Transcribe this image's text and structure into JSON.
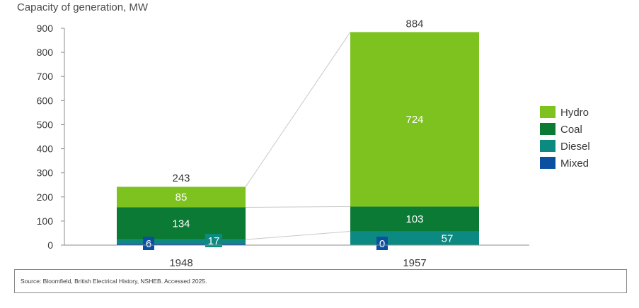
{
  "chart_data": {
    "type": "bar",
    "stacked": true,
    "ylabel": "Capacity of generation, MW",
    "ylim": [
      0,
      900
    ],
    "yticks": [
      0,
      100,
      200,
      300,
      400,
      500,
      600,
      700,
      800,
      900
    ],
    "categories": [
      "1948",
      "1957"
    ],
    "totals": [
      243,
      884
    ],
    "series": [
      {
        "name": "Mixed",
        "color": "#0a4fa0",
        "values": [
          6,
          0
        ]
      },
      {
        "name": "Diesel",
        "color": "#0c8a82",
        "values": [
          17,
          57
        ]
      },
      {
        "name": "Coal",
        "color": "#0b7a35",
        "values": [
          134,
          103
        ]
      },
      {
        "name": "Hydro",
        "color": "#7dc21e",
        "values": [
          85,
          724
        ]
      }
    ],
    "legend_order": [
      "Hydro",
      "Coal",
      "Diesel",
      "Mixed"
    ],
    "legend_position": "right",
    "grid": false
  },
  "source": "Source: Bloomfield, British Electrical History, NSHEB. Accessed 2025."
}
